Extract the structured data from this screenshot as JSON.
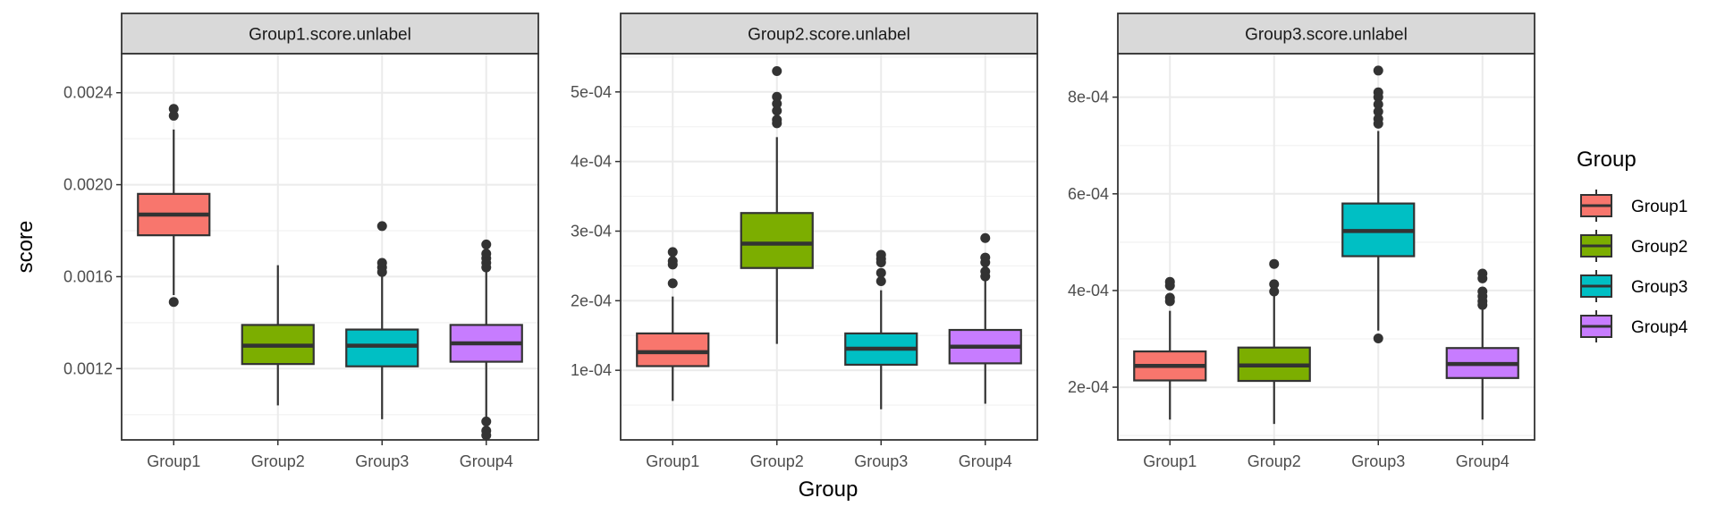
{
  "chart_data": {
    "type": "box",
    "categories": [
      "Group1",
      "Group2",
      "Group3",
      "Group4"
    ],
    "colors": {
      "Group1": "#F8766D",
      "Group2": "#7CAE00",
      "Group3": "#00BFC4",
      "Group4": "#C77CFF"
    },
    "xlabel": "Group",
    "ylabel": "score",
    "legend": {
      "title": "Group",
      "position": "right",
      "entries": [
        "Group1",
        "Group2",
        "Group3",
        "Group4"
      ]
    },
    "grid": true,
    "facets": [
      {
        "title": "Group1.score.unlabel",
        "ylim": [
          0.00089,
          0.00257
        ],
        "yticks": [
          0.0012,
          0.0016,
          0.002,
          0.0024
        ],
        "ytick_labels": [
          "0.0012",
          "0.0016",
          "0.0020",
          "0.0024"
        ],
        "boxes": [
          {
            "group": "Group1",
            "whisker_low": 0.00152,
            "q1": 0.00178,
            "median": 0.00187,
            "q3": 0.00196,
            "whisker_high": 0.00224,
            "outliers": [
              0.00233,
              0.0023,
              0.00149
            ]
          },
          {
            "group": "Group2",
            "whisker_low": 0.00104,
            "q1": 0.00122,
            "median": 0.0013,
            "q3": 0.00139,
            "whisker_high": 0.00165,
            "outliers": []
          },
          {
            "group": "Group3",
            "whisker_low": 0.00098,
            "q1": 0.00121,
            "median": 0.0013,
            "q3": 0.00137,
            "whisker_high": 0.0016,
            "outliers": [
              0.00182,
              0.00166,
              0.00164,
              0.00162
            ]
          },
          {
            "group": "Group4",
            "whisker_low": 0.00099,
            "q1": 0.00123,
            "median": 0.00131,
            "q3": 0.00139,
            "whisker_high": 0.00162,
            "outliers": [
              0.00174,
              0.0017,
              0.00168,
              0.00166,
              0.00164,
              0.00097,
              0.00093,
              0.00091
            ]
          }
        ]
      },
      {
        "title": "Group2.score.unlabel",
        "ylim": [
          0.0,
          0.000555
        ],
        "yticks": [
          0.0001,
          0.0002,
          0.0003,
          0.0004,
          0.0005
        ],
        "ytick_labels": [
          "1e-04",
          "2e-04",
          "3e-04",
          "4e-04",
          "5e-04"
        ],
        "boxes": [
          {
            "group": "Group1",
            "whisker_low": 5.6e-05,
            "q1": 0.000106,
            "median": 0.000126,
            "q3": 0.000153,
            "whisker_high": 0.000206,
            "outliers": [
              0.00027,
              0.000257,
              0.000252,
              0.000225
            ]
          },
          {
            "group": "Group2",
            "whisker_low": 0.000138,
            "q1": 0.000247,
            "median": 0.000282,
            "q3": 0.000326,
            "whisker_high": 0.000435,
            "outliers": [
              0.00053,
              0.000493,
              0.000483,
              0.000473,
              0.00046,
              0.000455
            ]
          },
          {
            "group": "Group3",
            "whisker_low": 4.4e-05,
            "q1": 0.000108,
            "median": 0.000131,
            "q3": 0.000153,
            "whisker_high": 0.000215,
            "outliers": [
              0.000266,
              0.00026,
              0.000255,
              0.00024,
              0.000228
            ]
          },
          {
            "group": "Group4",
            "whisker_low": 5.2e-05,
            "q1": 0.00011,
            "median": 0.000134,
            "q3": 0.000158,
            "whisker_high": 0.00023,
            "outliers": [
              0.00029,
              0.000262,
              0.000255,
              0.000242,
              0.000235
            ]
          }
        ]
      },
      {
        "title": "Group3.score.unlabel",
        "ylim": [
          9.1e-05,
          0.00089
        ],
        "yticks": [
          0.0002,
          0.0004,
          0.0006,
          0.0008
        ],
        "ytick_labels": [
          "2e-04",
          "4e-04",
          "6e-04",
          "8e-04"
        ],
        "boxes": [
          {
            "group": "Group1",
            "whisker_low": 0.000133,
            "q1": 0.000214,
            "median": 0.000244,
            "q3": 0.000274,
            "whisker_high": 0.000358,
            "outliers": [
              0.000418,
              0.00041,
              0.000385,
              0.000378
            ]
          },
          {
            "group": "Group2",
            "whisker_low": 0.000124,
            "q1": 0.000213,
            "median": 0.000245,
            "q3": 0.000282,
            "whisker_high": 0.000392,
            "outliers": [
              0.000455,
              0.000413,
              0.000398
            ]
          },
          {
            "group": "Group3",
            "whisker_low": 0.000317,
            "q1": 0.000471,
            "median": 0.000523,
            "q3": 0.00058,
            "whisker_high": 0.00073,
            "outliers": [
              0.000855,
              0.00081,
              0.0008,
              0.000785,
              0.00077,
              0.000755,
              0.000745,
              0.000301
            ]
          },
          {
            "group": "Group4",
            "whisker_low": 0.000133,
            "q1": 0.000219,
            "median": 0.000248,
            "q3": 0.000281,
            "whisker_high": 0.000365,
            "outliers": [
              0.000435,
              0.000425,
              0.000398,
              0.000388,
              0.000378,
              0.00037
            ]
          }
        ]
      }
    ]
  }
}
